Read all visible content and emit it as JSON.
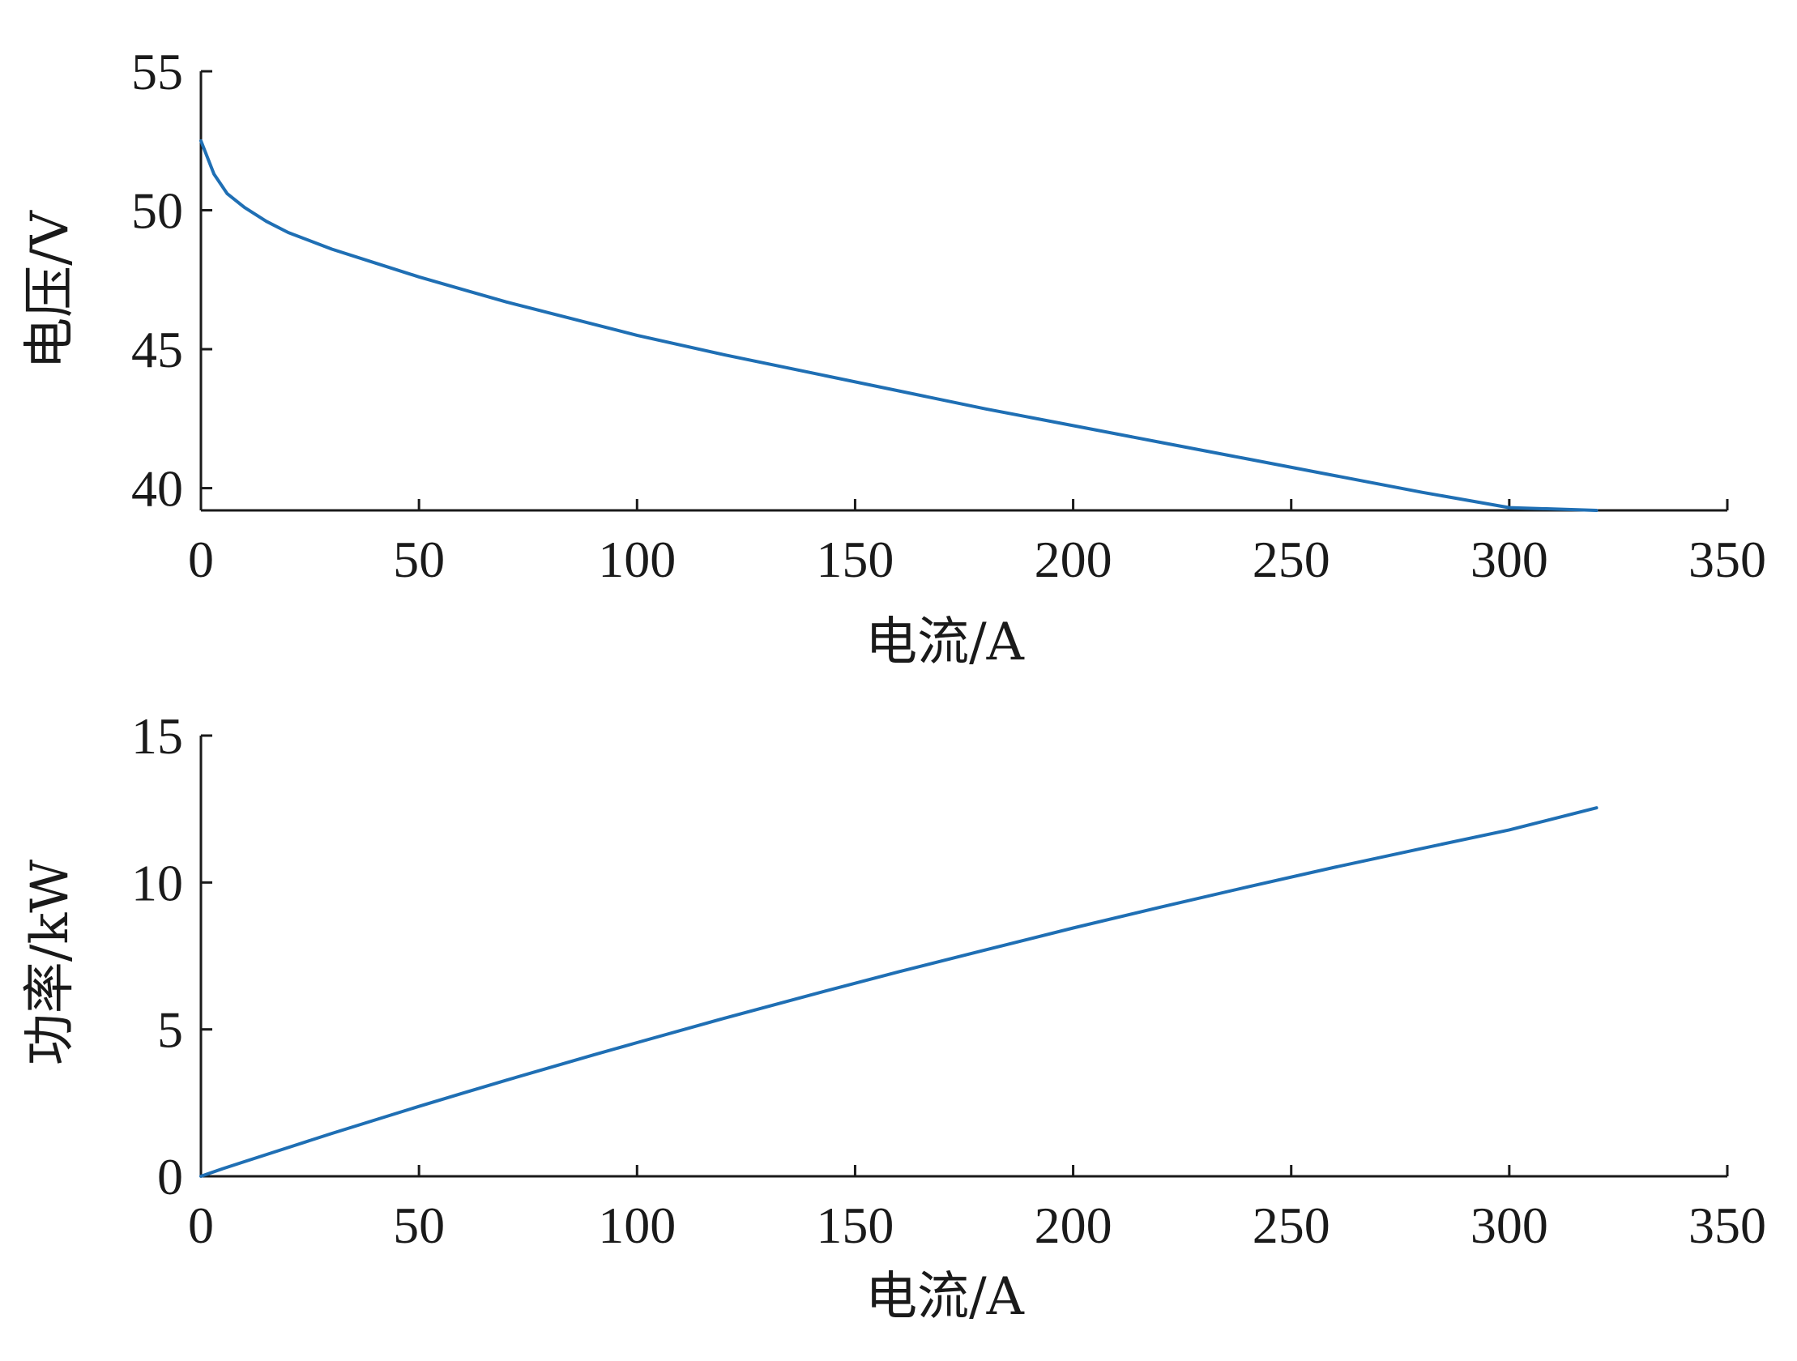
{
  "chart_data": [
    {
      "type": "line",
      "title": "",
      "xlabel": "电流/A",
      "ylabel": "电压/V",
      "xlim": [
        0,
        350
      ],
      "ylim": [
        39.2,
        55
      ],
      "xticks": [
        0,
        50,
        100,
        150,
        200,
        250,
        300,
        350
      ],
      "yticks": [
        40,
        45,
        50,
        55
      ],
      "grid": false,
      "series": [
        {
          "color": "#1f6fb4",
          "x": [
            0,
            3,
            6,
            10,
            15,
            20,
            30,
            40,
            50,
            60,
            70,
            80,
            90,
            100,
            120,
            140,
            160,
            180,
            200,
            220,
            240,
            260,
            280,
            300,
            320
          ],
          "y": [
            52.5,
            51.3,
            50.6,
            50.1,
            49.6,
            49.2,
            48.6,
            48.1,
            47.6,
            47.15,
            46.7,
            46.3,
            45.9,
            45.5,
            44.8,
            44.15,
            43.5,
            42.85,
            42.25,
            41.65,
            41.05,
            40.45,
            39.85,
            39.3,
            39.2
          ]
        }
      ]
    },
    {
      "type": "line",
      "title": "",
      "xlabel": "电流/A",
      "ylabel": "功率/kW",
      "xlim": [
        0,
        350
      ],
      "ylim": [
        0,
        15
      ],
      "xticks": [
        0,
        50,
        100,
        150,
        200,
        250,
        300,
        350
      ],
      "yticks": [
        0,
        5,
        10,
        15
      ],
      "grid": false,
      "series": [
        {
          "color": "#1f6fb4",
          "x": [
            0,
            5,
            10,
            20,
            30,
            40,
            50,
            60,
            70,
            80,
            90,
            100,
            120,
            140,
            160,
            180,
            200,
            220,
            240,
            260,
            280,
            300,
            320
          ],
          "y": [
            0,
            0.26,
            0.5,
            0.98,
            1.46,
            1.92,
            2.38,
            2.83,
            3.27,
            3.7,
            4.13,
            4.55,
            5.38,
            6.18,
            6.96,
            7.71,
            8.45,
            9.16,
            9.85,
            10.52,
            11.16,
            11.79,
            12.54
          ]
        }
      ]
    }
  ]
}
